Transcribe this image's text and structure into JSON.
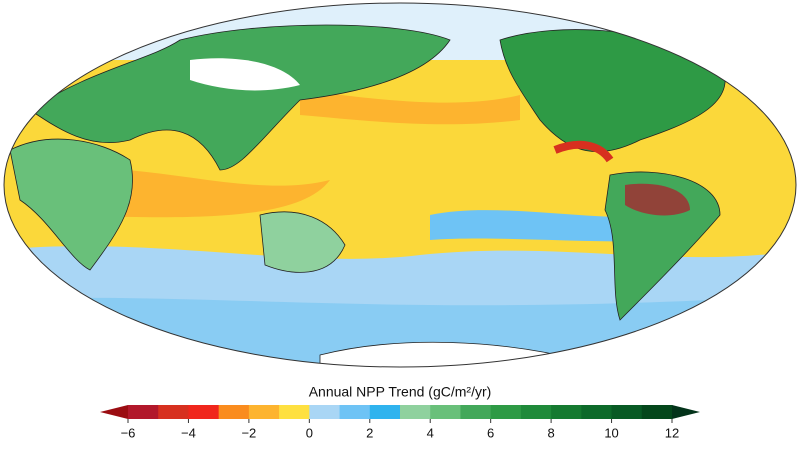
{
  "colorbar": {
    "title": "Annual NPP Trend (gC/m²/yr)",
    "lim": [
      -6,
      12
    ],
    "ticks": [
      {
        "value": -6,
        "label": "−6"
      },
      {
        "value": -4,
        "label": "−4"
      },
      {
        "value": -2,
        "label": "−2"
      },
      0,
      2,
      4,
      6,
      8,
      10,
      12
    ],
    "levels": [
      -6,
      -5,
      -4,
      -3,
      -2,
      -1,
      0,
      1,
      2,
      3,
      4,
      5,
      6,
      7,
      8,
      9,
      10,
      11,
      12
    ],
    "colors": [
      "#b2182b",
      "#d7301f",
      "#f0261c",
      "#fa8c1e",
      "#fdb42f",
      "#fee040",
      "#a9d6f5",
      "#6ec3f5",
      "#2fb3ee",
      "#8fd19e",
      "#69c07a",
      "#43a85a",
      "#2e9a45",
      "#1f8a3a",
      "#157a30",
      "#0d6a2a",
      "#085a24",
      "#04471b"
    ],
    "extend": "both",
    "under_color": "#9b0d12",
    "over_color": "#03331a"
  }
}
